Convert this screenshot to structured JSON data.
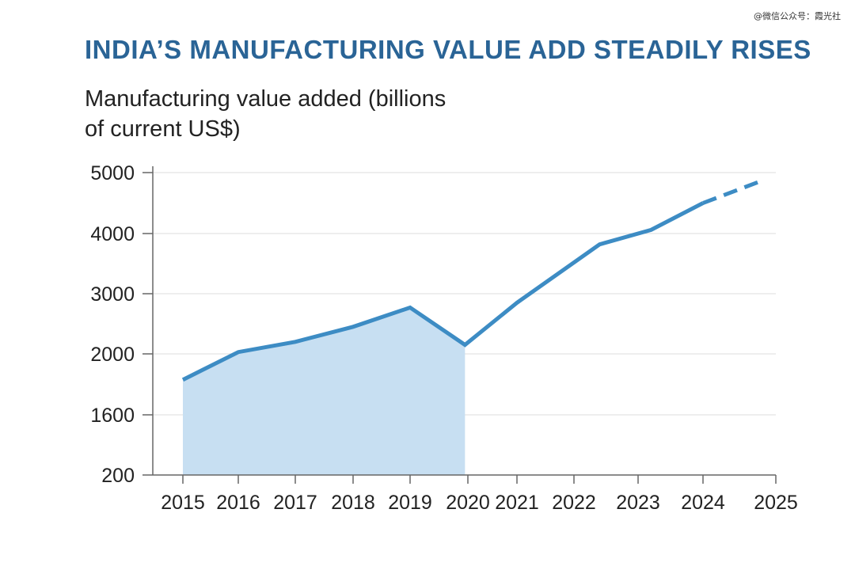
{
  "watermark": "@微信公众号：霞光社",
  "chart_data": {
    "type": "line",
    "title": "INDIA’S MANUFACTURING VALUE ADD STEADILY RISES",
    "subtitle": "Manufacturing value added (billions of current US$)",
    "ylabel": "",
    "xlabel": "",
    "y_ticks": [
      "5000",
      "4000",
      "3000",
      "2000",
      "1600",
      "200"
    ],
    "x_ticks": [
      "2015",
      "2016",
      "2017",
      "2018",
      "2019",
      "2020",
      "2021",
      "2022",
      "2023",
      "2024",
      "2025"
    ],
    "grid": "horizontal",
    "series": [
      {
        "x": [
          2015,
          2016,
          2017,
          2018,
          2019,
          2019.95,
          2021,
          2022.4,
          2023.2,
          2024
        ],
        "y": [
          1830,
          2030,
          2200,
          2450,
          2770,
          2150,
          2850,
          3820,
          4060,
          4500
        ],
        "style": "solid",
        "color": "#3d8cc4"
      },
      {
        "x": [
          2024,
          2024.75
        ],
        "y": [
          4500,
          4840
        ],
        "style": "dashed",
        "color": "#3d8cc4"
      }
    ],
    "shaded_area": {
      "x_range": [
        2015,
        2019.95
      ],
      "color": "#c7dff2"
    }
  }
}
